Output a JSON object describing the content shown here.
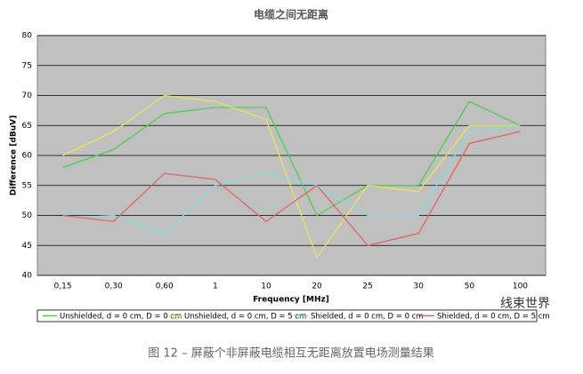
{
  "chart_data": {
    "type": "line",
    "title": "电缆之间无距离",
    "x_label": "Frequency [MHz]",
    "y_label": "Difference [dBuV]",
    "categories": [
      "0,15",
      "0,30",
      "0,60",
      "1",
      "10",
      "20",
      "25",
      "30",
      "50",
      "100"
    ],
    "ylim": [
      40,
      80
    ],
    "yticks": [
      40,
      45,
      50,
      55,
      60,
      65,
      70,
      75,
      80
    ],
    "grid": true,
    "series": [
      {
        "name": "Unshielded, d = 0 cm, D = 0 cm",
        "color": "#4ccf4c",
        "values": [
          58,
          61,
          67,
          68,
          68,
          50,
          55,
          55,
          69,
          65
        ]
      },
      {
        "name": "Unshielded, d = 0 cm,  D = 5 cm",
        "color": "#e6e65a",
        "values": [
          60,
          64,
          70,
          69,
          66,
          43,
          55,
          54,
          65,
          65
        ]
      },
      {
        "name": "Shielded, d = 0 cm, D = 0 cm",
        "color": "#7fdede",
        "values": [
          50.5,
          50,
          47,
          55,
          57,
          55,
          50,
          50,
          64,
          65
        ]
      },
      {
        "name": "Shielded, d = 0 cm, D = 5 cm",
        "color": "#e06464",
        "values": [
          50,
          49,
          57,
          56,
          49,
          55,
          45,
          47,
          62,
          64
        ]
      }
    ]
  },
  "caption": "图 12 – 屏蔽个非屏蔽电缆相互无距离放置电场测量结果",
  "watermark": "线束世界"
}
